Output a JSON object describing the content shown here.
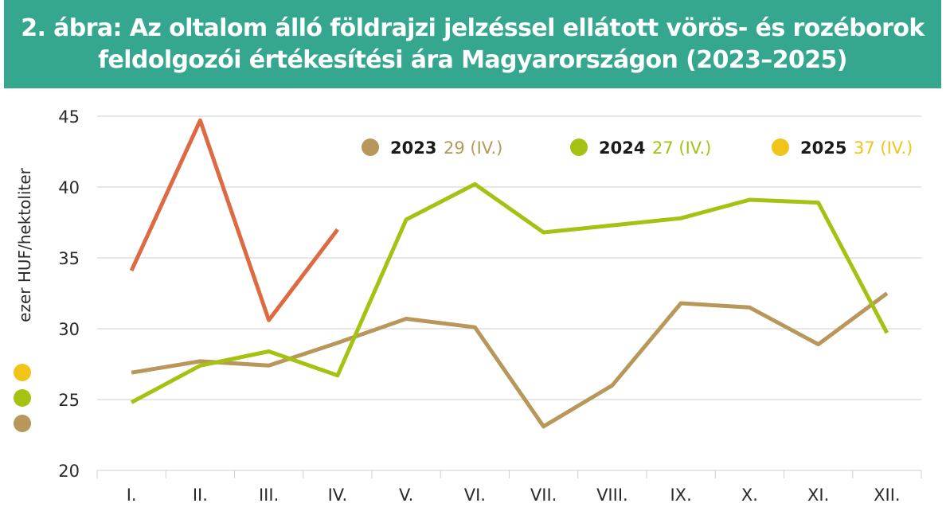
{
  "title": {
    "line1": "2. ábra: Az oltalom álló földrajzi jelzéssel ellátott vörös- és rozéborok",
    "line2": "feldolgozói értékesítési ára Magyarországon (2023–2025)"
  },
  "chart_data": {
    "type": "line",
    "categories": [
      "I.",
      "II.",
      "III.",
      "IV.",
      "V.",
      "VI.",
      "VII.",
      "VIII.",
      "IX.",
      "X.",
      "XI.",
      "XII."
    ],
    "ylabel": "ezer HUF/hektoliter",
    "ylim": [
      20,
      45
    ],
    "yticks": [
      "20",
      "25",
      "30",
      "35",
      "40",
      "45"
    ],
    "grid": true,
    "legend_position": "top",
    "series": [
      {
        "name": "2023",
        "note": "29 (IV.)",
        "color": "#b8975a",
        "values": [
          26.9,
          27.7,
          27.4,
          29.0,
          30.7,
          30.1,
          23.1,
          26.0,
          31.8,
          31.5,
          28.9,
          32.5
        ]
      },
      {
        "name": "2024",
        "note": "27 (IV.)",
        "color": "#a5c212",
        "values": [
          24.8,
          27.4,
          28.4,
          26.7,
          37.7,
          40.2,
          36.8,
          37.3,
          37.8,
          39.1,
          38.9,
          29.7
        ]
      },
      {
        "name": "2025",
        "note": "37 (IV.)",
        "color": "#dd6a42",
        "legend_color": "#f0c419",
        "values": [
          34.1,
          44.7,
          30.6,
          37.0,
          null,
          null,
          null,
          null,
          null,
          null,
          null,
          null
        ]
      }
    ]
  }
}
